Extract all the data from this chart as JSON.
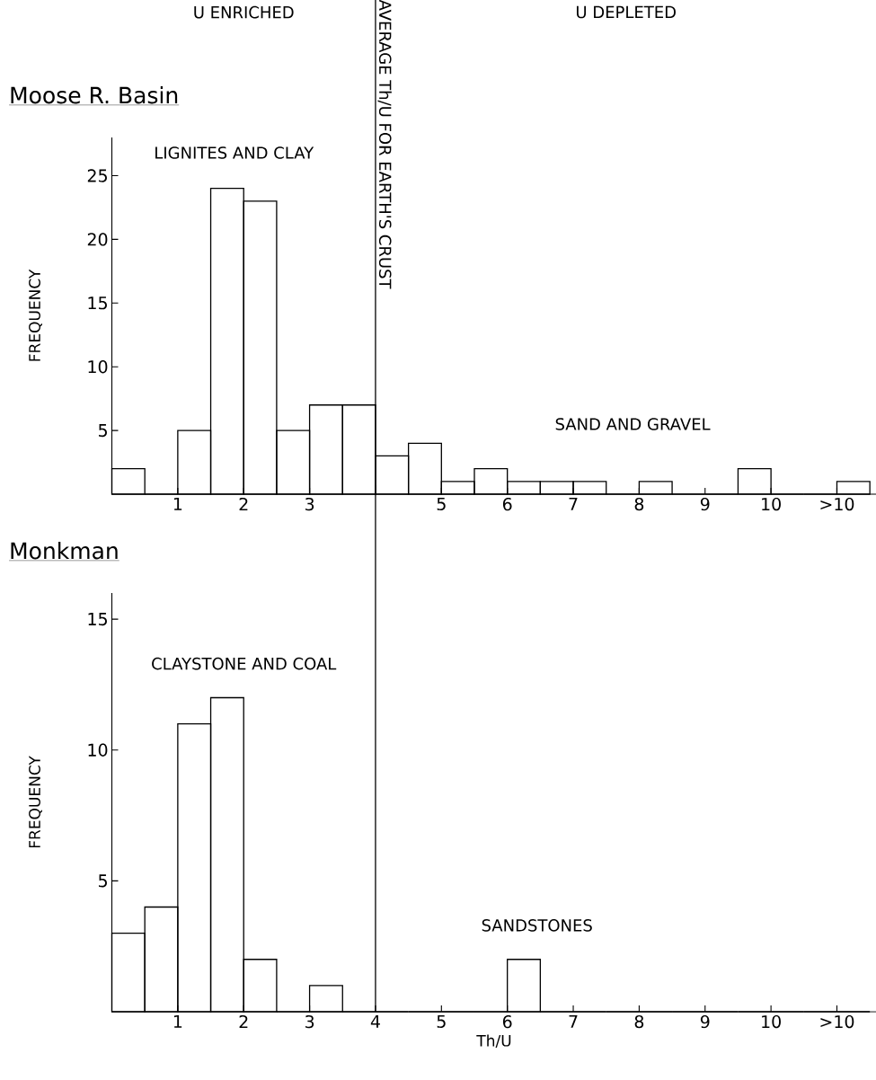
{
  "chart_data": [
    {
      "type": "histogram",
      "title": "Moose R. Basin",
      "ylabel": "FREQUENCY",
      "color": "#000000",
      "bins": [
        0,
        0.5,
        1,
        1.5,
        2,
        2.5,
        3,
        3.5,
        4,
        4.5,
        5,
        5.5,
        6,
        6.5,
        7,
        7.5,
        8,
        8.5,
        9,
        9.5,
        10,
        10.5,
        11,
        11.5
      ],
      "values": [
        2,
        0,
        5,
        24,
        23,
        5,
        7,
        7,
        3,
        4,
        1,
        2,
        1,
        1,
        1,
        0,
        1,
        0,
        0,
        2,
        0,
        0,
        1
      ],
      "xlim": [
        0,
        11.6
      ],
      "ylim": [
        0,
        28
      ],
      "xticks": [
        1,
        2,
        3,
        5,
        6,
        7,
        8,
        9,
        10,
        {
          "value": 11,
          "label": ">10"
        }
      ],
      "yticks": [
        5,
        10,
        15,
        20,
        25
      ],
      "ref_lines": [
        {
          "axis": "x",
          "value": 4,
          "label": "AVERAGE Th/U FOR EARTH'S CRUST"
        }
      ],
      "annotations": [
        "U ENRICHED",
        "U DEPLETED",
        "LIGNITES AND CLAY",
        "SAND AND GRAVEL"
      ],
      "grid": false
    },
    {
      "type": "histogram",
      "title": "Monkman",
      "ylabel": "FREQUENCY",
      "xlabel": "Th/U",
      "color": "#000000",
      "bins": [
        0,
        0.5,
        1,
        1.5,
        2,
        2.5,
        3,
        3.5,
        4,
        4.5,
        5,
        5.5,
        6,
        6.5,
        7,
        7.5,
        8,
        8.5,
        9,
        9.5,
        10,
        10.5,
        11,
        11.5
      ],
      "values": [
        3,
        4,
        11,
        12,
        2,
        0,
        1,
        0,
        0,
        0,
        0,
        0,
        2,
        0,
        0,
        0,
        0,
        0,
        0,
        0,
        0,
        0,
        0
      ],
      "xlim": [
        0,
        11.6
      ],
      "ylim": [
        0,
        16
      ],
      "xticks": [
        1,
        2,
        3,
        4,
        5,
        6,
        7,
        8,
        9,
        10,
        {
          "value": 11,
          "label": ">10"
        }
      ],
      "yticks": [
        5,
        10,
        15
      ],
      "ref_lines": [
        {
          "axis": "x",
          "value": 4
        }
      ],
      "annotations": [
        "CLAYSTONE AND COAL",
        "SANDSTONES"
      ],
      "grid": false
    }
  ]
}
